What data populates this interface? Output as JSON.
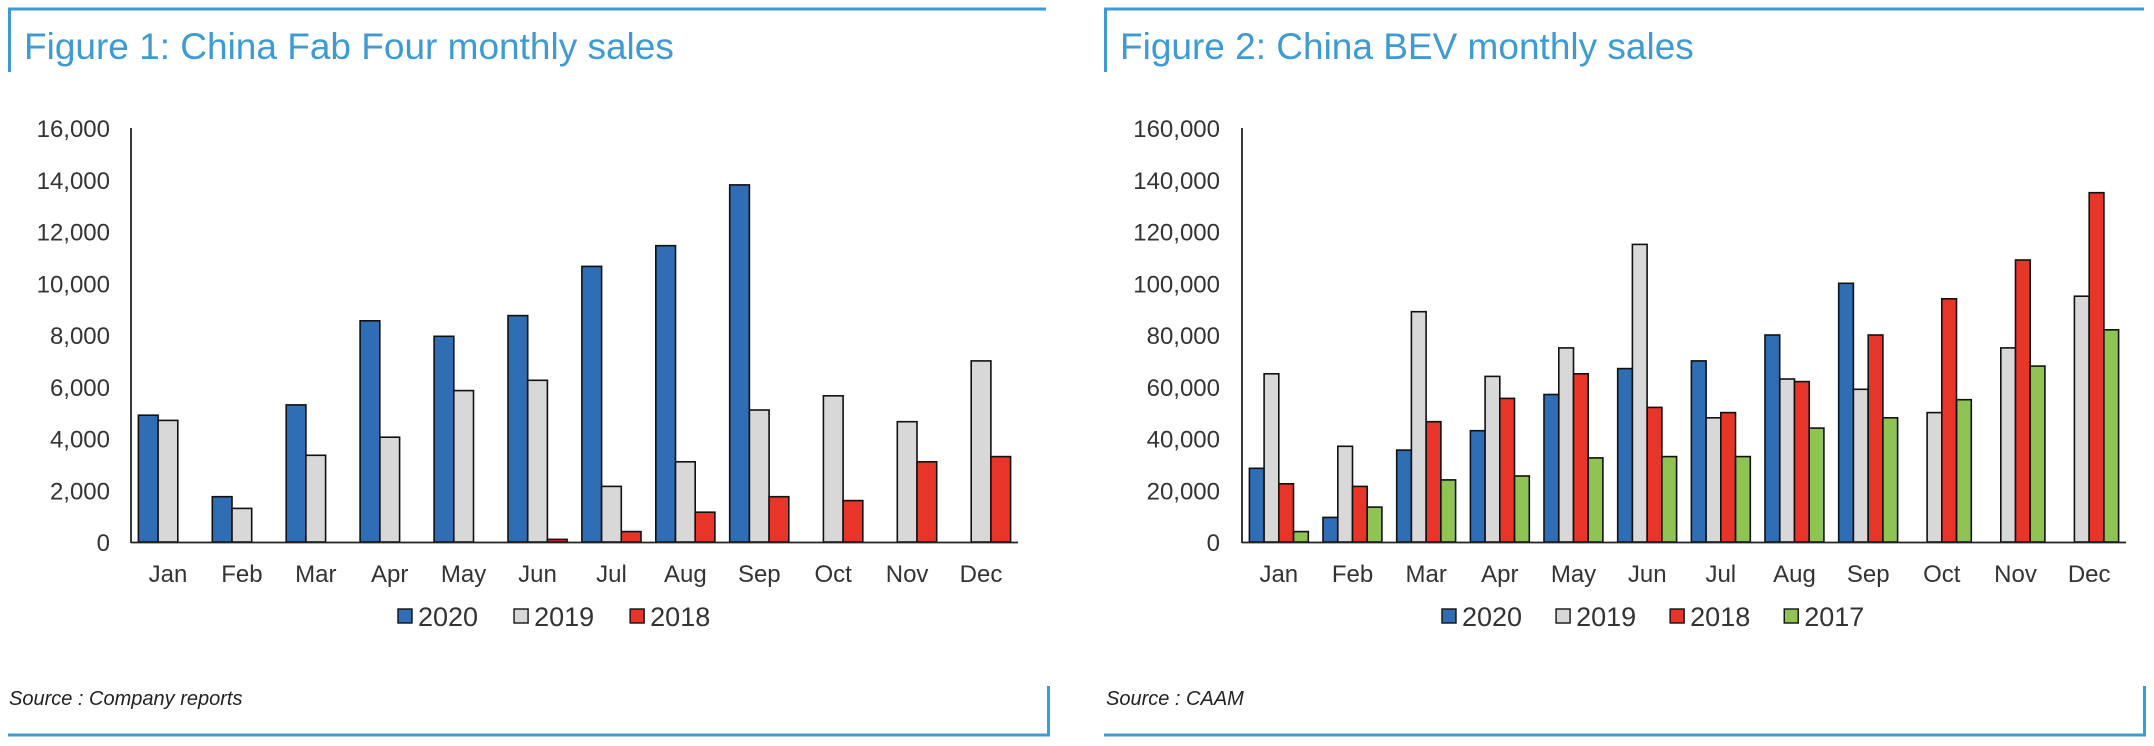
{
  "charts": [
    {
      "figure_title": "Figure 1: China Fab Four monthly sales",
      "source": "Source : Company reports",
      "chart_data": {
        "type": "bar",
        "title": "Figure 1: China Fab Four monthly sales",
        "categories": [
          "Jan",
          "Feb",
          "Mar",
          "Apr",
          "May",
          "Jun",
          "Jul",
          "Aug",
          "Sep",
          "Oct",
          "Nov",
          "Dec"
        ],
        "series": [
          {
            "name": "2020",
            "color": "#2f6db5",
            "values": [
              4900,
              1750,
              5300,
              8550,
              7950,
              8750,
              10650,
              11450,
              13800,
              null,
              null,
              null
            ]
          },
          {
            "name": "2019",
            "color": "#d8d8d8",
            "values": [
              4700,
              1300,
              3350,
              4050,
              5850,
              6250,
              2150,
              3100,
              5100,
              5650,
              4650,
              7000
            ]
          },
          {
            "name": "2018",
            "color": "#e8352a",
            "values": [
              null,
              null,
              null,
              null,
              null,
              100,
              400,
              1150,
              1750,
              1600,
              3100,
              3300
            ]
          }
        ],
        "ylim": [
          0,
          16000
        ],
        "yticks": [
          "0",
          "2,000",
          "4,000",
          "6,000",
          "8,000",
          "10,000",
          "12,000",
          "14,000",
          "16,000"
        ],
        "grid": false,
        "legend": "bottom",
        "xlabel": "",
        "ylabel": ""
      }
    },
    {
      "figure_title": "Figure 2: China BEV monthly sales",
      "source": "Source : CAAM",
      "chart_data": {
        "type": "bar",
        "title": "Figure 2: China BEV monthly sales",
        "categories": [
          "Jan",
          "Feb",
          "Mar",
          "Apr",
          "May",
          "Jun",
          "Jul",
          "Aug",
          "Sep",
          "Oct",
          "Nov",
          "Dec"
        ],
        "series": [
          {
            "name": "2020",
            "color": "#2f6db5",
            "values": [
              28500,
              9500,
              35500,
              43000,
              57000,
              67000,
              70000,
              80000,
              100000,
              null,
              null,
              null
            ]
          },
          {
            "name": "2019",
            "color": "#d8d8d8",
            "values": [
              65000,
              37000,
              89000,
              64000,
              75000,
              115000,
              48000,
              63000,
              59000,
              50000,
              75000,
              95000
            ]
          },
          {
            "name": "2018",
            "color": "#e8352a",
            "values": [
              22500,
              21500,
              46500,
              55500,
              65000,
              52000,
              50000,
              62000,
              80000,
              94000,
              109000,
              135000
            ]
          },
          {
            "name": "2017",
            "color": "#8fc455",
            "values": [
              4000,
              13500,
              24000,
              25500,
              32500,
              33000,
              33000,
              44000,
              48000,
              55000,
              68000,
              82000
            ]
          }
        ],
        "ylim": [
          0,
          160000
        ],
        "yticks": [
          "0",
          "20,000",
          "40,000",
          "60,000",
          "80,000",
          "100,000",
          "120,000",
          "140,000",
          "160,000"
        ],
        "grid": false,
        "legend": "bottom",
        "xlabel": "",
        "ylabel": ""
      }
    }
  ]
}
